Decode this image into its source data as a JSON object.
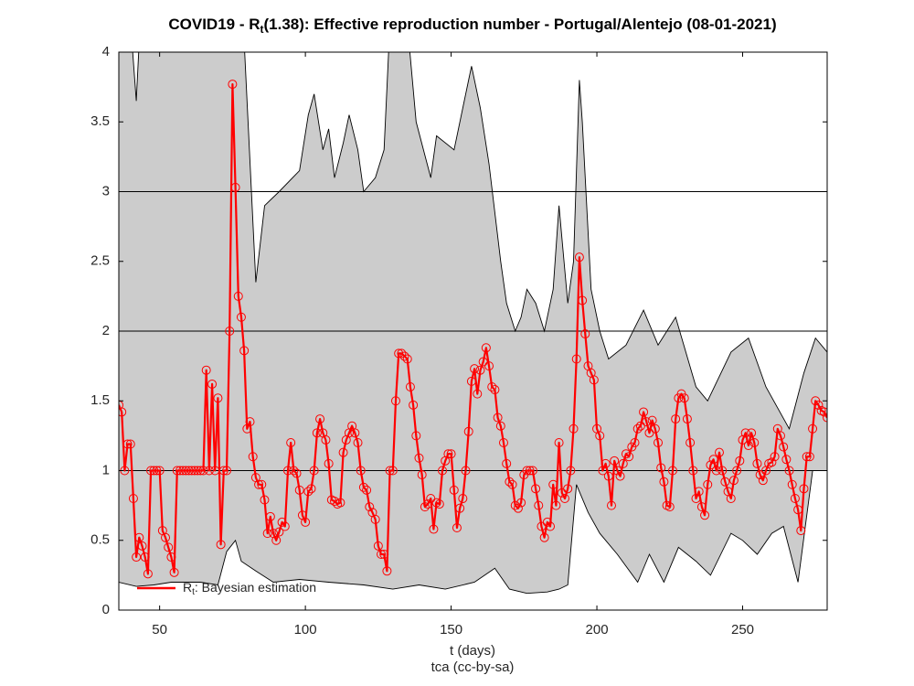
{
  "chart_data": {
    "type": "line",
    "title": [
      "COVID19 - R",
      "t",
      "(1.38): Effective reproduction number - Portugal/Alentejo (08-01-2021)"
    ],
    "xlabel": "t (days)",
    "caption": "tca (cc-by-sa)",
    "xlim": [
      36,
      279
    ],
    "ylim": [
      0,
      4
    ],
    "xticks": [
      50,
      100,
      150,
      200,
      250
    ],
    "yticks": [
      0,
      0.5,
      1,
      1.5,
      2,
      2.5,
      3,
      3.5,
      4
    ],
    "hlines": [
      1,
      2,
      3
    ],
    "legend": "southwest",
    "band": {
      "color": "#cccccc",
      "upper": {
        "x": [
          36,
          39,
          42,
          44,
          78,
          83,
          86,
          91,
          98,
          101,
          103,
          106,
          108,
          110,
          113,
          115,
          118,
          120,
          124,
          127,
          129,
          135,
          138,
          143,
          145,
          151,
          156,
          157,
          160,
          163,
          167,
          169,
          172,
          174,
          176,
          179,
          182,
          185,
          187,
          190,
          192,
          194,
          195,
          198,
          201,
          204,
          210,
          216,
          221,
          227,
          234,
          238,
          246,
          252,
          258,
          266,
          271,
          275,
          279
        ],
        "values": [
          4.5,
          4.5,
          3.65,
          4.5,
          4.5,
          2.35,
          2.9,
          3.0,
          3.15,
          3.55,
          3.7,
          3.3,
          3.45,
          3.1,
          3.35,
          3.55,
          3.3,
          3.0,
          3.1,
          3.3,
          4.2,
          4.2,
          3.5,
          3.1,
          3.4,
          3.3,
          3.8,
          3.9,
          3.6,
          3.2,
          2.5,
          2.2,
          2.0,
          2.1,
          2.3,
          2.2,
          2.0,
          2.3,
          2.9,
          2.2,
          2.5,
          3.8,
          3.5,
          2.3,
          2.0,
          1.8,
          1.9,
          2.15,
          1.9,
          2.1,
          1.6,
          1.5,
          1.85,
          1.95,
          1.6,
          1.3,
          1.7,
          1.95,
          1.85
        ]
      },
      "lower": {
        "x": [
          36,
          42,
          48,
          54,
          64,
          70,
          73,
          76,
          78,
          83,
          89,
          98,
          108,
          120,
          130,
          139,
          148,
          158,
          165,
          170,
          176,
          183,
          187,
          190,
          193,
          197,
          201,
          207,
          214,
          218,
          223,
          228,
          234,
          239,
          246,
          250,
          255,
          260,
          264,
          269,
          274,
          279
        ],
        "values": [
          0.2,
          0.17,
          0.18,
          0.2,
          0.2,
          0.18,
          0.42,
          0.5,
          0.35,
          0.28,
          0.2,
          0.22,
          0.2,
          0.18,
          0.15,
          0.18,
          0.15,
          0.2,
          0.3,
          0.15,
          0.12,
          0.13,
          0.15,
          0.18,
          0.9,
          0.7,
          0.55,
          0.4,
          0.2,
          0.4,
          0.2,
          0.45,
          0.35,
          0.25,
          0.55,
          0.5,
          0.4,
          0.55,
          0.6,
          0.2,
          1.0,
          1.0
        ]
      }
    },
    "series": [
      {
        "name": [
          "R",
          "t",
          ": Bayesian estimation"
        ],
        "color": "#ff0000",
        "x": [
          36,
          37,
          38,
          39,
          40,
          41,
          42,
          43,
          44,
          45,
          46,
          47,
          48,
          49,
          50,
          51,
          52,
          53,
          54,
          55,
          56,
          57,
          58,
          59,
          60,
          61,
          62,
          63,
          64,
          65,
          66,
          67,
          68,
          69,
          70,
          71,
          72,
          73,
          74,
          75,
          76,
          77,
          78,
          79,
          80,
          81,
          82,
          83,
          84,
          85,
          86,
          87,
          88,
          89,
          90,
          91,
          92,
          93,
          94,
          95,
          96,
          97,
          98,
          99,
          100,
          101,
          102,
          103,
          104,
          105,
          106,
          107,
          108,
          109,
          110,
          111,
          112,
          113,
          114,
          115,
          116,
          117,
          118,
          119,
          120,
          121,
          122,
          123,
          124,
          125,
          126,
          127,
          128,
          129,
          130,
          131,
          132,
          133,
          134,
          135,
          136,
          137,
          138,
          139,
          140,
          141,
          142,
          143,
          144,
          145,
          146,
          147,
          148,
          149,
          150,
          151,
          152,
          153,
          154,
          155,
          156,
          157,
          158,
          159,
          160,
          161,
          162,
          163,
          164,
          165,
          166,
          167,
          168,
          169,
          170,
          171,
          172,
          173,
          174,
          175,
          176,
          177,
          178,
          179,
          180,
          181,
          182,
          183,
          184,
          185,
          186,
          187,
          188,
          189,
          190,
          191,
          192,
          193,
          194,
          195,
          196,
          197,
          198,
          199,
          200,
          201,
          202,
          203,
          204,
          205,
          206,
          207,
          208,
          209,
          210,
          211,
          212,
          213,
          214,
          215,
          216,
          217,
          218,
          219,
          220,
          221,
          222,
          223,
          224,
          225,
          226,
          227,
          228,
          229,
          230,
          231,
          232,
          233,
          234,
          235,
          236,
          237,
          238,
          239,
          240,
          241,
          242,
          243,
          244,
          245,
          246,
          247,
          248,
          249,
          250,
          251,
          252,
          253,
          254,
          255,
          256,
          257,
          258,
          259,
          260,
          261,
          262,
          263,
          264,
          265,
          266,
          267,
          268,
          269,
          270,
          271,
          272,
          273,
          274,
          275,
          276,
          277,
          278,
          279
        ],
        "values": [
          1.47,
          1.42,
          1.0,
          1.19,
          1.19,
          0.8,
          0.38,
          0.52,
          0.46,
          0.38,
          0.26,
          1,
          1,
          1,
          1,
          0.57,
          0.52,
          0.45,
          0.38,
          0.27,
          1,
          1,
          1,
          1,
          1,
          1,
          1,
          1,
          1,
          1,
          1.72,
          1.0,
          1.62,
          1.0,
          1.52,
          0.47,
          1.0,
          1.0,
          2.0,
          3.77,
          3.03,
          2.25,
          2.1,
          1.86,
          1.3,
          1.35,
          1.1,
          0.95,
          0.9,
          0.9,
          0.79,
          0.55,
          0.67,
          0.55,
          0.5,
          0.56,
          0.63,
          0.6,
          1.0,
          1.2,
          1.0,
          0.98,
          0.86,
          0.68,
          0.63,
          0.85,
          0.87,
          1.0,
          1.27,
          1.37,
          1.27,
          1.22,
          1.05,
          0.79,
          0.78,
          0.76,
          0.77,
          1.13,
          1.22,
          1.27,
          1.32,
          1.27,
          1.2,
          1.0,
          0.88,
          0.86,
          0.74,
          0.7,
          0.65,
          0.46,
          0.4,
          0.4,
          0.28,
          1.0,
          1.0,
          1.5,
          1.84,
          1.84,
          1.82,
          1.8,
          1.6,
          1.47,
          1.25,
          1.09,
          0.97,
          0.74,
          0.76,
          0.8,
          0.58,
          0.77,
          0.76,
          1.0,
          1.07,
          1.12,
          1.12,
          0.86,
          0.59,
          0.73,
          0.8,
          1.0,
          1.28,
          1.64,
          1.73,
          1.55,
          1.72,
          1.78,
          1.88,
          1.75,
          1.6,
          1.58,
          1.38,
          1.32,
          1.2,
          1.05,
          0.92,
          0.9,
          0.75,
          0.73,
          0.77,
          0.97,
          1.0,
          1.0,
          1.0,
          0.87,
          0.75,
          0.6,
          0.52,
          0.63,
          0.6,
          0.9,
          0.75,
          1.2,
          0.84,
          0.8,
          0.87,
          1.0,
          1.3,
          1.8,
          2.53,
          2.22,
          1.98,
          1.75,
          1.7,
          1.65,
          1.3,
          1.25,
          1.0,
          1.05,
          0.96,
          0.75,
          1.07,
          1.0,
          0.96,
          1.05,
          1.12,
          1.1,
          1.17,
          1.2,
          1.3,
          1.32,
          1.42,
          1.35,
          1.27,
          1.36,
          1.3,
          1.2,
          1.02,
          0.92,
          0.75,
          0.74,
          1.0,
          1.37,
          1.52,
          1.55,
          1.52,
          1.37,
          1.2,
          1.0,
          0.8,
          0.85,
          0.74,
          0.68,
          0.9,
          1.04,
          1.08,
          1.0,
          1.13,
          1.0,
          0.92,
          0.85,
          0.8,
          0.93,
          1.0,
          1.07,
          1.22,
          1.27,
          1.18,
          1.27,
          1.2,
          1.05,
          0.97,
          0.93,
          1.0,
          1.05,
          1.06,
          1.1,
          1.3,
          1.25,
          1.17,
          1.08,
          1.0,
          0.9,
          0.8,
          0.72,
          0.57,
          0.87,
          1.1,
          1.1,
          1.3,
          1.5,
          1.47,
          1.43,
          1.42,
          1.38
        ]
      }
    ]
  }
}
